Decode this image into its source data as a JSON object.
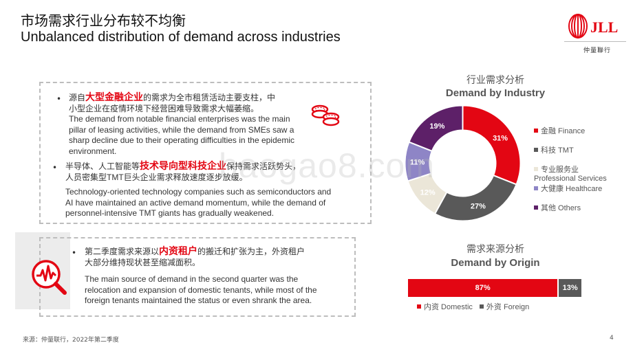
{
  "header": {
    "title_cn": "市场需求行业分布较不均衡",
    "title_en": "Unbalanced distribution of demand across industries",
    "logo_text": "JLL",
    "logo_sub": "仲量聯行"
  },
  "box1": {
    "b1_pre": "源自",
    "b1_hl": "大型金融企业",
    "b1_post": "的需求为全市租赁活动主要支柱，中",
    "b1_line2": "小型企业在疫情环境下经营困难导致需求大幅萎缩。",
    "b1_en": [
      "The demand from notable financial enterprises was the main",
      "pillar of leasing activities, while the demand from SMEs saw a",
      "sharp decline due to their operating difficulties in the epidemic",
      "environment."
    ],
    "b2_pre": "半导体、人工智能等",
    "b2_hl": "技术导向型科技企业",
    "b2_post": "保持需求活跃势头，",
    "b2_line2": "人员密集型TMT巨头企业需求释放速度逐步放缓。",
    "b2_en": [
      "Technology-oriented technology companies such as semiconductors and",
      "AI have maintained an active demand momentum, while the demand of",
      "personnel-intensive TMT giants has gradually weakened."
    ]
  },
  "box2": {
    "pre": "第二季度需求来源以",
    "hl": "内资租户",
    "post": "的搬迁和扩张为主，外资租户",
    "line2": "大部分维持现状甚至缩减面积。",
    "en": [
      "The main source of demand in the second quarter was the",
      "relocation and expansion of domestic tenants, while most of the",
      "foreign tenants maintained the status or even shrank the area."
    ]
  },
  "industry": {
    "title_cn": "行业需求分析",
    "title_en": "Demand by Industry"
  },
  "origin": {
    "title_cn": "需求来源分析",
    "title_en": "Demand by Origin"
  },
  "chart_data": [
    {
      "type": "pie",
      "title": "Demand by Industry",
      "categories": [
        "金融 Finance",
        "科技 TMT",
        "专业服务业 Professional Services",
        "大健康 Healthcare",
        "其他 Others"
      ],
      "legend_labels": [
        [
          "金融 Finance"
        ],
        [
          "科技 TMT"
        ],
        [
          "专业服务业",
          "Professional Services"
        ],
        [
          "大健康 Healthcare"
        ],
        [
          "其他 Others"
        ]
      ],
      "values": [
        31,
        27,
        12,
        11,
        19
      ],
      "labels": [
        "31%",
        "27%",
        "12%",
        "11%",
        "19%"
      ],
      "colors": [
        "#e30613",
        "#595959",
        "#ebe6d8",
        "#8e85c6",
        "#5d2068"
      ],
      "legend_position": "right"
    },
    {
      "type": "bar",
      "title": "Demand by Origin",
      "categories": [
        "内资 Domestic",
        "外资 Foreign"
      ],
      "values": [
        87,
        13
      ],
      "labels": [
        "87%",
        "13%"
      ],
      "colors": [
        "#e30613",
        "#595959"
      ],
      "stacked": true,
      "legend_position": "bottom"
    }
  ],
  "footer": {
    "source": "来源：仲量联行，2022年第二季度",
    "page": "4"
  },
  "watermark": "baogao8.com"
}
